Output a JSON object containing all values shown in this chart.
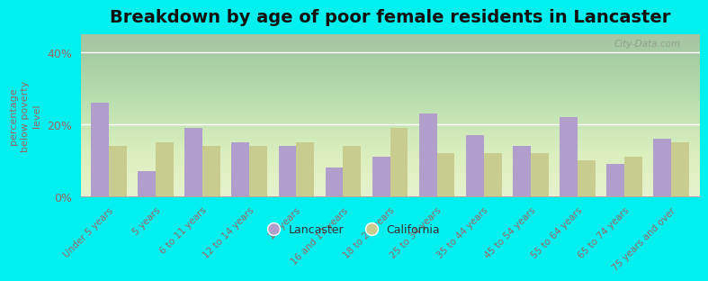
{
  "title": "Breakdown by age of poor female residents in Lancaster",
  "ylabel": "percentage\nbelow poverty\nlevel",
  "categories": [
    "Under 5 years",
    "5 years",
    "6 to 11 years",
    "12 to 14 years",
    "15 years",
    "16 and 17 years",
    "18 to 24 years",
    "25 to 34 years",
    "35 to 44 years",
    "45 to 54 years",
    "55 to 64 years",
    "65 to 74 years",
    "75 years and over"
  ],
  "lancaster": [
    26,
    7,
    19,
    15,
    14,
    8,
    11,
    23,
    17,
    14,
    22,
    9,
    16
  ],
  "california": [
    14,
    15,
    14,
    14,
    15,
    14,
    19,
    12,
    12,
    12,
    10,
    11,
    15
  ],
  "lancaster_color": "#b09fcc",
  "california_color": "#c8cc8f",
  "yticks": [
    0,
    20,
    40
  ],
  "ytick_labels": [
    "0%",
    "20%",
    "40%"
  ],
  "ylim": [
    0,
    45
  ],
  "plot_bg_top": "#e8f0d0",
  "plot_bg_bottom": "#d0e8c8",
  "outer_background": "#00f0f0",
  "legend_lancaster": "Lancaster",
  "legend_california": "California",
  "title_fontsize": 14,
  "bar_width": 0.38,
  "watermark": "City-Data.com",
  "tick_color": "#996666",
  "axis_label_color": "#996666"
}
